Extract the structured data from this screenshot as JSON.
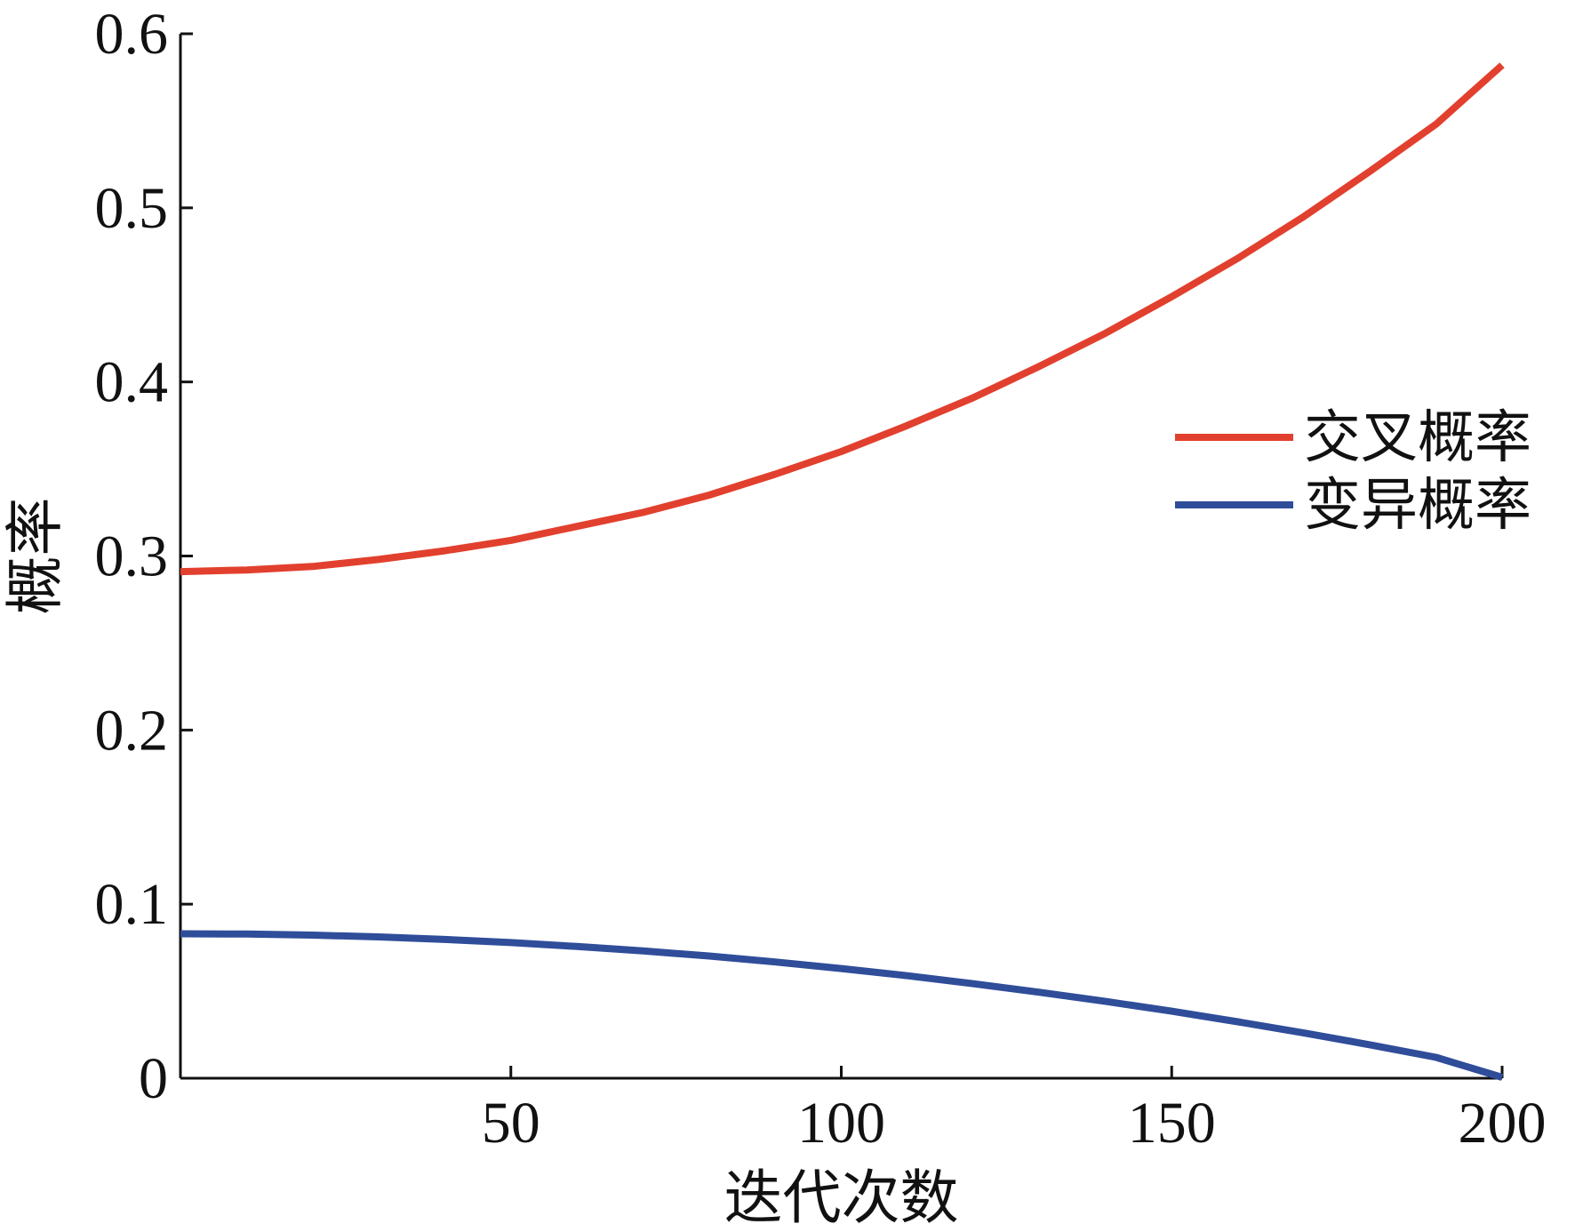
{
  "chart_data": {
    "type": "line",
    "title": "",
    "xlabel": "迭代次数",
    "ylabel": "概率",
    "xlim": [
      0,
      200
    ],
    "ylim": [
      0,
      0.6
    ],
    "xticks": [
      50,
      100,
      150,
      200
    ],
    "xtick_labels": [
      "50",
      "100",
      "150",
      "200"
    ],
    "yticks": [
      0,
      0.1,
      0.2,
      0.3,
      0.4,
      0.5,
      0.6
    ],
    "ytick_labels": [
      "0",
      "0.1",
      "0.2",
      "0.3",
      "0.4",
      "0.5",
      "0.6"
    ],
    "grid": false,
    "legend_position": "right",
    "x": [
      0,
      10,
      20,
      30,
      40,
      50,
      60,
      70,
      80,
      90,
      100,
      110,
      120,
      130,
      140,
      150,
      160,
      170,
      180,
      190,
      200
    ],
    "series": [
      {
        "name": "交叉概率",
        "color": "#e2402e",
        "values": [
          0.291,
          0.292,
          0.294,
          0.298,
          0.303,
          0.309,
          0.317,
          0.325,
          0.335,
          0.347,
          0.36,
          0.375,
          0.391,
          0.409,
          0.428,
          0.449,
          0.471,
          0.495,
          0.521,
          0.548,
          0.582
        ]
      },
      {
        "name": "变异概率",
        "color": "#2f4d99",
        "values": [
          0.083,
          0.0828,
          0.0822,
          0.0812,
          0.0797,
          0.0779,
          0.0757,
          0.0731,
          0.0702,
          0.0668,
          0.063,
          0.0589,
          0.0543,
          0.0494,
          0.0441,
          0.0385,
          0.0324,
          0.026,
          0.0192,
          0.012,
          0.0005
        ]
      }
    ]
  }
}
